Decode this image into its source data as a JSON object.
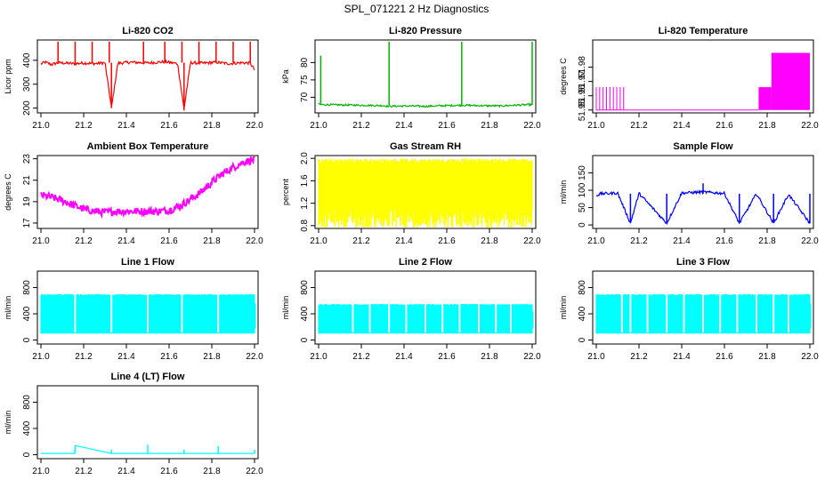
{
  "page_title": "SPL_071221  2 Hz Diagnostics",
  "chart_data": [
    {
      "type": "line",
      "title": "Li-820 CO2",
      "xlabel": "",
      "ylabel": "Licor ppm",
      "xlim": [
        21.0,
        22.0
      ],
      "ylim": [
        180,
        485
      ],
      "x_ticks": [
        "21.0",
        "21.2",
        "21.4",
        "21.6",
        "21.8",
        "22.0"
      ],
      "y_ticks": [
        "200",
        "300",
        "400"
      ],
      "color": "#ff0000",
      "series": [
        {
          "x": [
            21.0,
            21.02,
            21.05,
            21.08,
            21.12,
            21.16,
            21.2,
            21.25,
            21.3,
            21.33,
            21.36,
            21.42,
            21.5,
            21.58,
            21.64,
            21.67,
            21.7,
            21.76,
            21.82,
            21.88,
            21.94,
            21.98,
            22.0
          ],
          "y": [
            385,
            392,
            382,
            390,
            388,
            386,
            389,
            386,
            390,
            200,
            388,
            392,
            389,
            394,
            386,
            195,
            390,
            388,
            392,
            386,
            390,
            388,
            360
          ]
        }
      ]
    },
    {
      "type": "line",
      "title": "Li-820 Pressure",
      "xlabel": "",
      "ylabel": "kPa",
      "xlim": [
        21.0,
        22.0
      ],
      "ylim": [
        65.5,
        86.5
      ],
      "x_ticks": [
        "21.0",
        "21.2",
        "21.4",
        "21.6",
        "21.8",
        "22.0"
      ],
      "y_ticks": [
        "70",
        "75",
        "80"
      ],
      "color": "#00b400",
      "series": [
        {
          "x": [
            21.0,
            21.01,
            21.1,
            21.2,
            21.3,
            21.33,
            21.4,
            21.5,
            21.6,
            21.67,
            21.75,
            21.85,
            21.95,
            22.0
          ],
          "y": [
            68.1,
            67.9,
            67.8,
            67.7,
            67.6,
            67.4,
            67.5,
            67.4,
            67.6,
            67.7,
            67.6,
            67.5,
            67.8,
            67.9
          ]
        }
      ]
    },
    {
      "type": "line",
      "title": "Li-820 Temperature",
      "xlabel": "",
      "ylabel": "degrees C",
      "xlim": [
        21.0,
        22.0
      ],
      "ylim": [
        51.948,
        51.999
      ],
      "x_ticks": [
        "21.0",
        "21.2",
        "21.4",
        "21.6",
        "21.8",
        "22.0"
      ],
      "y_ticks": [
        "51.95",
        "51.96",
        "51.97",
        "51.98"
      ],
      "color": "#ff00ff",
      "series": [
        {
          "x": [
            21.0,
            21.13,
            21.13,
            21.76,
            21.76,
            21.82,
            21.82,
            22.0
          ],
          "y": [
            51.95,
            51.95,
            51.95,
            51.95,
            51.95,
            51.95,
            51.95,
            51.95
          ]
        }
      ]
    },
    {
      "type": "line",
      "title": "Ambient Box Temperature",
      "xlabel": "",
      "ylabel": "degrees C",
      "xlim": [
        21.0,
        22.0
      ],
      "ylim": [
        16.5,
        23.3
      ],
      "x_ticks": [
        "21.0",
        "21.2",
        "21.4",
        "21.6",
        "21.8",
        "22.0"
      ],
      "y_ticks": [
        "17",
        "19",
        "21",
        "23"
      ],
      "color": "#ff00ff",
      "series": [
        {
          "x": [
            21.0,
            21.05,
            21.1,
            21.15,
            21.2,
            21.25,
            21.3,
            21.35,
            21.4,
            21.45,
            21.5,
            21.55,
            21.6,
            21.65,
            21.7,
            21.75,
            21.8,
            21.85,
            21.9,
            21.95,
            22.0
          ],
          "y": [
            19.6,
            19.4,
            19.1,
            18.7,
            18.3,
            18.1,
            18.0,
            18.1,
            18.1,
            18.1,
            18.1,
            18.1,
            18.2,
            18.6,
            19.2,
            19.9,
            20.8,
            21.6,
            22.2,
            22.7,
            22.9
          ]
        }
      ]
    },
    {
      "type": "line",
      "title": "Gas Stream RH",
      "xlabel": "",
      "ylabel": "percent",
      "xlim": [
        21.0,
        22.0
      ],
      "ylim": [
        0.75,
        2.05
      ],
      "x_ticks": [
        "21.0",
        "21.2",
        "21.4",
        "21.6",
        "21.8",
        "22.0"
      ],
      "y_ticks": [
        "0.8",
        "1.2",
        "1.6",
        "2.0"
      ],
      "color": "#ffff00",
      "series": [
        {
          "x": [
            21.0,
            22.0
          ],
          "y": [
            1.1,
            1.9
          ]
        }
      ]
    },
    {
      "type": "line",
      "title": "Sample Flow",
      "xlabel": "",
      "ylabel": "ml/min",
      "xlim": [
        21.0,
        22.0
      ],
      "ylim": [
        -10,
        200
      ],
      "x_ticks": [
        "21.0",
        "21.2",
        "21.4",
        "21.6",
        "21.8",
        "22.0"
      ],
      "y_ticks": [
        "0",
        "50",
        "100",
        "150"
      ],
      "color": "#0000ff",
      "series": [
        {
          "x": [
            21.0,
            21.02,
            21.1,
            21.16,
            21.2,
            21.33,
            21.4,
            21.5,
            21.6,
            21.67,
            21.75,
            21.83,
            21.9,
            22.0
          ],
          "y": [
            85,
            90,
            92,
            5,
            91,
            5,
            92,
            95,
            91,
            5,
            90,
            5,
            88,
            5
          ]
        }
      ]
    },
    {
      "type": "area",
      "title": "Line 1 Flow",
      "xlabel": "",
      "ylabel": "ml/min",
      "xlim": [
        21.0,
        22.0
      ],
      "ylim": [
        -60,
        1050
      ],
      "x_ticks": [
        "21.0",
        "21.2",
        "21.4",
        "21.6",
        "21.8",
        "22.0"
      ],
      "y_ticks": [
        "0",
        "400",
        "800"
      ],
      "color": "#00ffff",
      "series": [
        {
          "x": [
            21.0,
            22.0
          ],
          "y": [
            100,
            700
          ]
        }
      ]
    },
    {
      "type": "area",
      "title": "Line 2 Flow",
      "xlabel": "",
      "ylabel": "ml/min",
      "xlim": [
        21.0,
        22.0
      ],
      "ylim": [
        -60,
        1050
      ],
      "x_ticks": [
        "21.0",
        "21.2",
        "21.4",
        "21.6",
        "21.8",
        "22.0"
      ],
      "y_ticks": [
        "0",
        "400",
        "800"
      ],
      "color": "#00ffff",
      "series": [
        {
          "x": [
            21.0,
            22.0
          ],
          "y": [
            100,
            550
          ]
        }
      ]
    },
    {
      "type": "area",
      "title": "Line 3 Flow",
      "xlabel": "",
      "ylabel": "ml/min",
      "xlim": [
        21.0,
        22.0
      ],
      "ylim": [
        -60,
        1050
      ],
      "x_ticks": [
        "21.0",
        "21.2",
        "21.4",
        "21.6",
        "21.8",
        "22.0"
      ],
      "y_ticks": [
        "0",
        "400",
        "800"
      ],
      "color": "#00ffff",
      "series": [
        {
          "x": [
            21.0,
            22.0
          ],
          "y": [
            100,
            700
          ]
        }
      ]
    },
    {
      "type": "line",
      "title": "Line 4 (LT) Flow",
      "xlabel": "",
      "ylabel": "ml/min",
      "xlim": [
        21.0,
        22.0
      ],
      "ylim": [
        -60,
        1050
      ],
      "x_ticks": [
        "21.0",
        "21.2",
        "21.4",
        "21.6",
        "21.8",
        "22.0"
      ],
      "y_ticks": [
        "0",
        "400",
        "800"
      ],
      "color": "#00ffff",
      "series": [
        {
          "x": [
            21.0,
            21.16,
            21.16,
            21.33,
            21.5,
            21.67,
            21.83,
            22.0
          ],
          "y": [
            20,
            20,
            140,
            20,
            20,
            20,
            20,
            20
          ]
        }
      ]
    }
  ]
}
